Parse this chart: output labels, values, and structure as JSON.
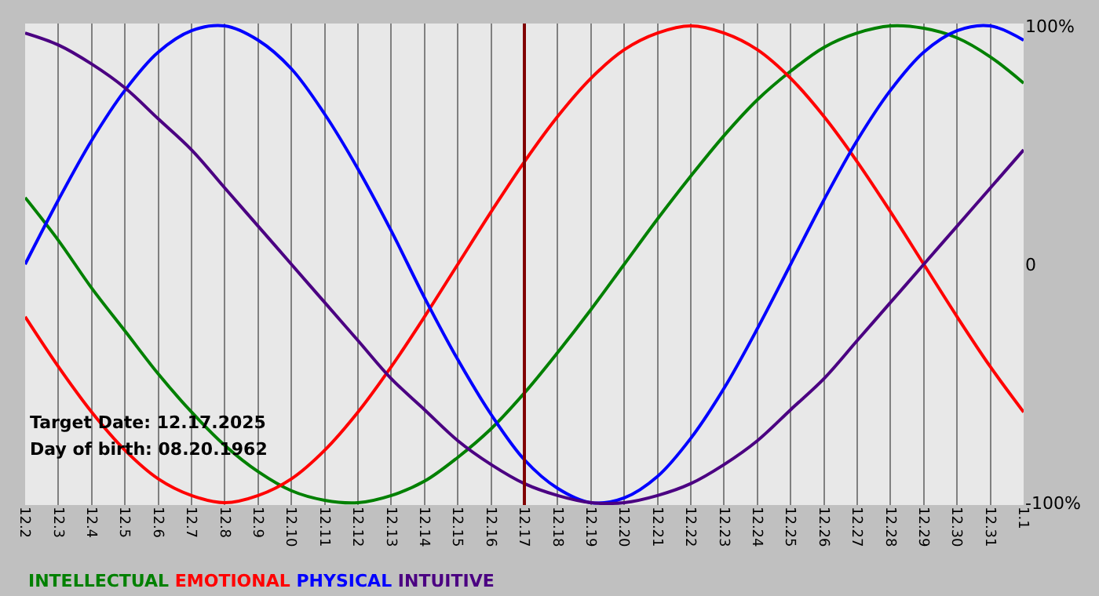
{
  "chart_data": {
    "type": "line",
    "categories": [
      "12.2",
      "12.3",
      "12.4",
      "12.5",
      "12.6",
      "12.7",
      "12.8",
      "12.9",
      "12.10",
      "12.11",
      "12.12",
      "12.13",
      "12.14",
      "12.15",
      "12.16",
      "12.17",
      "12.18",
      "12.19",
      "12.20",
      "12.21",
      "12.22",
      "12.23",
      "12.24",
      "12.25",
      "12.26",
      "12.27",
      "12.28",
      "12.29",
      "12.30",
      "12.31",
      "1.1"
    ],
    "series": [
      {
        "name": "INTELLECTUAL",
        "color": "#008000",
        "values": [
          28,
          10,
          -10,
          -28,
          -46,
          -62,
          -76,
          -87,
          -95,
          -99,
          -100,
          -97,
          -91,
          -81,
          -69,
          -54,
          -37,
          -19,
          0,
          19,
          37,
          54,
          69,
          81,
          91,
          97,
          100,
          99,
          95,
          87,
          76
        ]
      },
      {
        "name": "EMOTIONAL",
        "color": "#ff0000",
        "values": [
          -22,
          -43,
          -62,
          -78,
          -90,
          -97,
          -100,
          -97,
          -90,
          -78,
          -62,
          -43,
          -22,
          0,
          22,
          43,
          62,
          78,
          90,
          97,
          100,
          97,
          90,
          78,
          62,
          43,
          22,
          0,
          -22,
          -43,
          -62
        ]
      },
      {
        "name": "PHYSICAL",
        "color": "#0000ff",
        "values": [
          0,
          27,
          52,
          73,
          89,
          98,
          100,
          94,
          82,
          63,
          40,
          14,
          -14,
          -40,
          -63,
          -82,
          -94,
          -100,
          -98,
          -89,
          -73,
          -52,
          -27,
          0,
          27,
          52,
          73,
          89,
          98,
          100,
          94
        ]
      },
      {
        "name": "INTUITIVE",
        "color": "#4b0082",
        "values": [
          97,
          92,
          84,
          74,
          61,
          48,
          32,
          16,
          0,
          -16,
          -32,
          -48,
          -61,
          -74,
          -84,
          -92,
          -97,
          -100,
          -100,
          -97,
          -92,
          -84,
          -74,
          -61,
          -48,
          -32,
          -16,
          0,
          16,
          32,
          48
        ]
      }
    ],
    "ylim": [
      -101,
      101
    ],
    "yticks": [
      {
        "value": 100,
        "label": "100%"
      },
      0,
      {
        "value": -100,
        "label": "-100%"
      }
    ],
    "grid": "x",
    "ref_lines": [
      {
        "axis": "x",
        "value": "12.17",
        "label": null,
        "color": "#800000"
      }
    ],
    "annotations": [
      "Target Date: 12.17.2025",
      "Day of birth: 08.20.1962"
    ],
    "marker": "none",
    "line_style": "solid"
  }
}
